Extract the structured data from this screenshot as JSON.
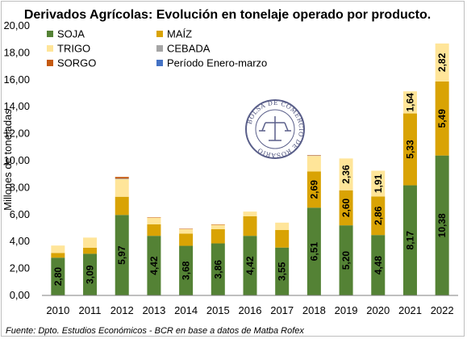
{
  "chart_data": {
    "type": "bar",
    "stacked": true,
    "title": "Derivados Agrícolas: Evolución en tonelaje operado por producto.",
    "ylabel": "Millones de toneladas",
    "xlabel": "",
    "ylim": [
      0,
      20
    ],
    "yticks": [
      "0,00",
      "2,00",
      "4,00",
      "6,00",
      "8,00",
      "10,00",
      "12,00",
      "14,00",
      "16,00",
      "18,00",
      "20,00"
    ],
    "categories": [
      "2010",
      "2011",
      "2012",
      "2013",
      "2014",
      "2015",
      "2016",
      "2017",
      "2018",
      "2019",
      "2020",
      "2021",
      "2022"
    ],
    "grid": false,
    "legend_position": "top-left",
    "series": [
      {
        "name": "SOJA",
        "color": "#548235",
        "values": [
          2.8,
          3.09,
          5.97,
          4.42,
          3.68,
          3.86,
          4.42,
          3.55,
          6.51,
          5.2,
          4.48,
          8.17,
          10.38
        ],
        "labels": [
          "2,80",
          "3,09",
          "5,97",
          "4,42",
          "3,68",
          "3,86",
          "4,42",
          "3,55",
          "6,51",
          "5,20",
          "4,48",
          "8,17",
          "10,38"
        ]
      },
      {
        "name": "MAÍZ",
        "color": "#d9a304",
        "values": [
          0.35,
          0.45,
          1.35,
          0.85,
          0.9,
          1.05,
          1.45,
          1.3,
          2.69,
          2.6,
          2.86,
          5.33,
          5.49
        ],
        "labels": [
          "",
          "",
          "",
          "",
          "",
          "",
          "",
          "",
          "2,69",
          "2,60",
          "2,86",
          "5,33",
          "5,49"
        ]
      },
      {
        "name": "TRIGO",
        "color": "#ffe599",
        "values": [
          0.55,
          0.75,
          1.3,
          0.5,
          0.35,
          0.35,
          0.35,
          0.55,
          1.15,
          2.36,
          1.91,
          1.64,
          2.82
        ],
        "labels": [
          "",
          "",
          "",
          "",
          "",
          "",
          "",
          "",
          "",
          "2,36",
          "1,91",
          "1,64",
          "2,82"
        ]
      },
      {
        "name": "CEBADA",
        "color": "#a5a5a5",
        "values": [
          0,
          0,
          0.05,
          0,
          0,
          0,
          0,
          0,
          0.03,
          0,
          0,
          0,
          0
        ],
        "labels": []
      },
      {
        "name": "SORGO",
        "color": "#c55a11",
        "values": [
          0,
          0,
          0.12,
          0.03,
          0.02,
          0.01,
          0,
          0,
          0.03,
          0,
          0,
          0,
          0
        ],
        "labels": []
      },
      {
        "name": "Período Enero-marzo",
        "color": "#4472c4",
        "values": [
          0,
          0,
          0,
          0,
          0,
          0,
          0,
          0,
          0,
          0,
          0,
          0,
          0
        ],
        "labels": []
      }
    ],
    "annotations": [
      "BOLSA DE COMERCIO DE ROSARIO"
    ]
  },
  "source": "Fuente: Dpto. Estudios Económicos - BCR en base a datos de Matba Rofex",
  "colors": {
    "label_color": "#000000",
    "axis_color": "#7f7f7f"
  }
}
